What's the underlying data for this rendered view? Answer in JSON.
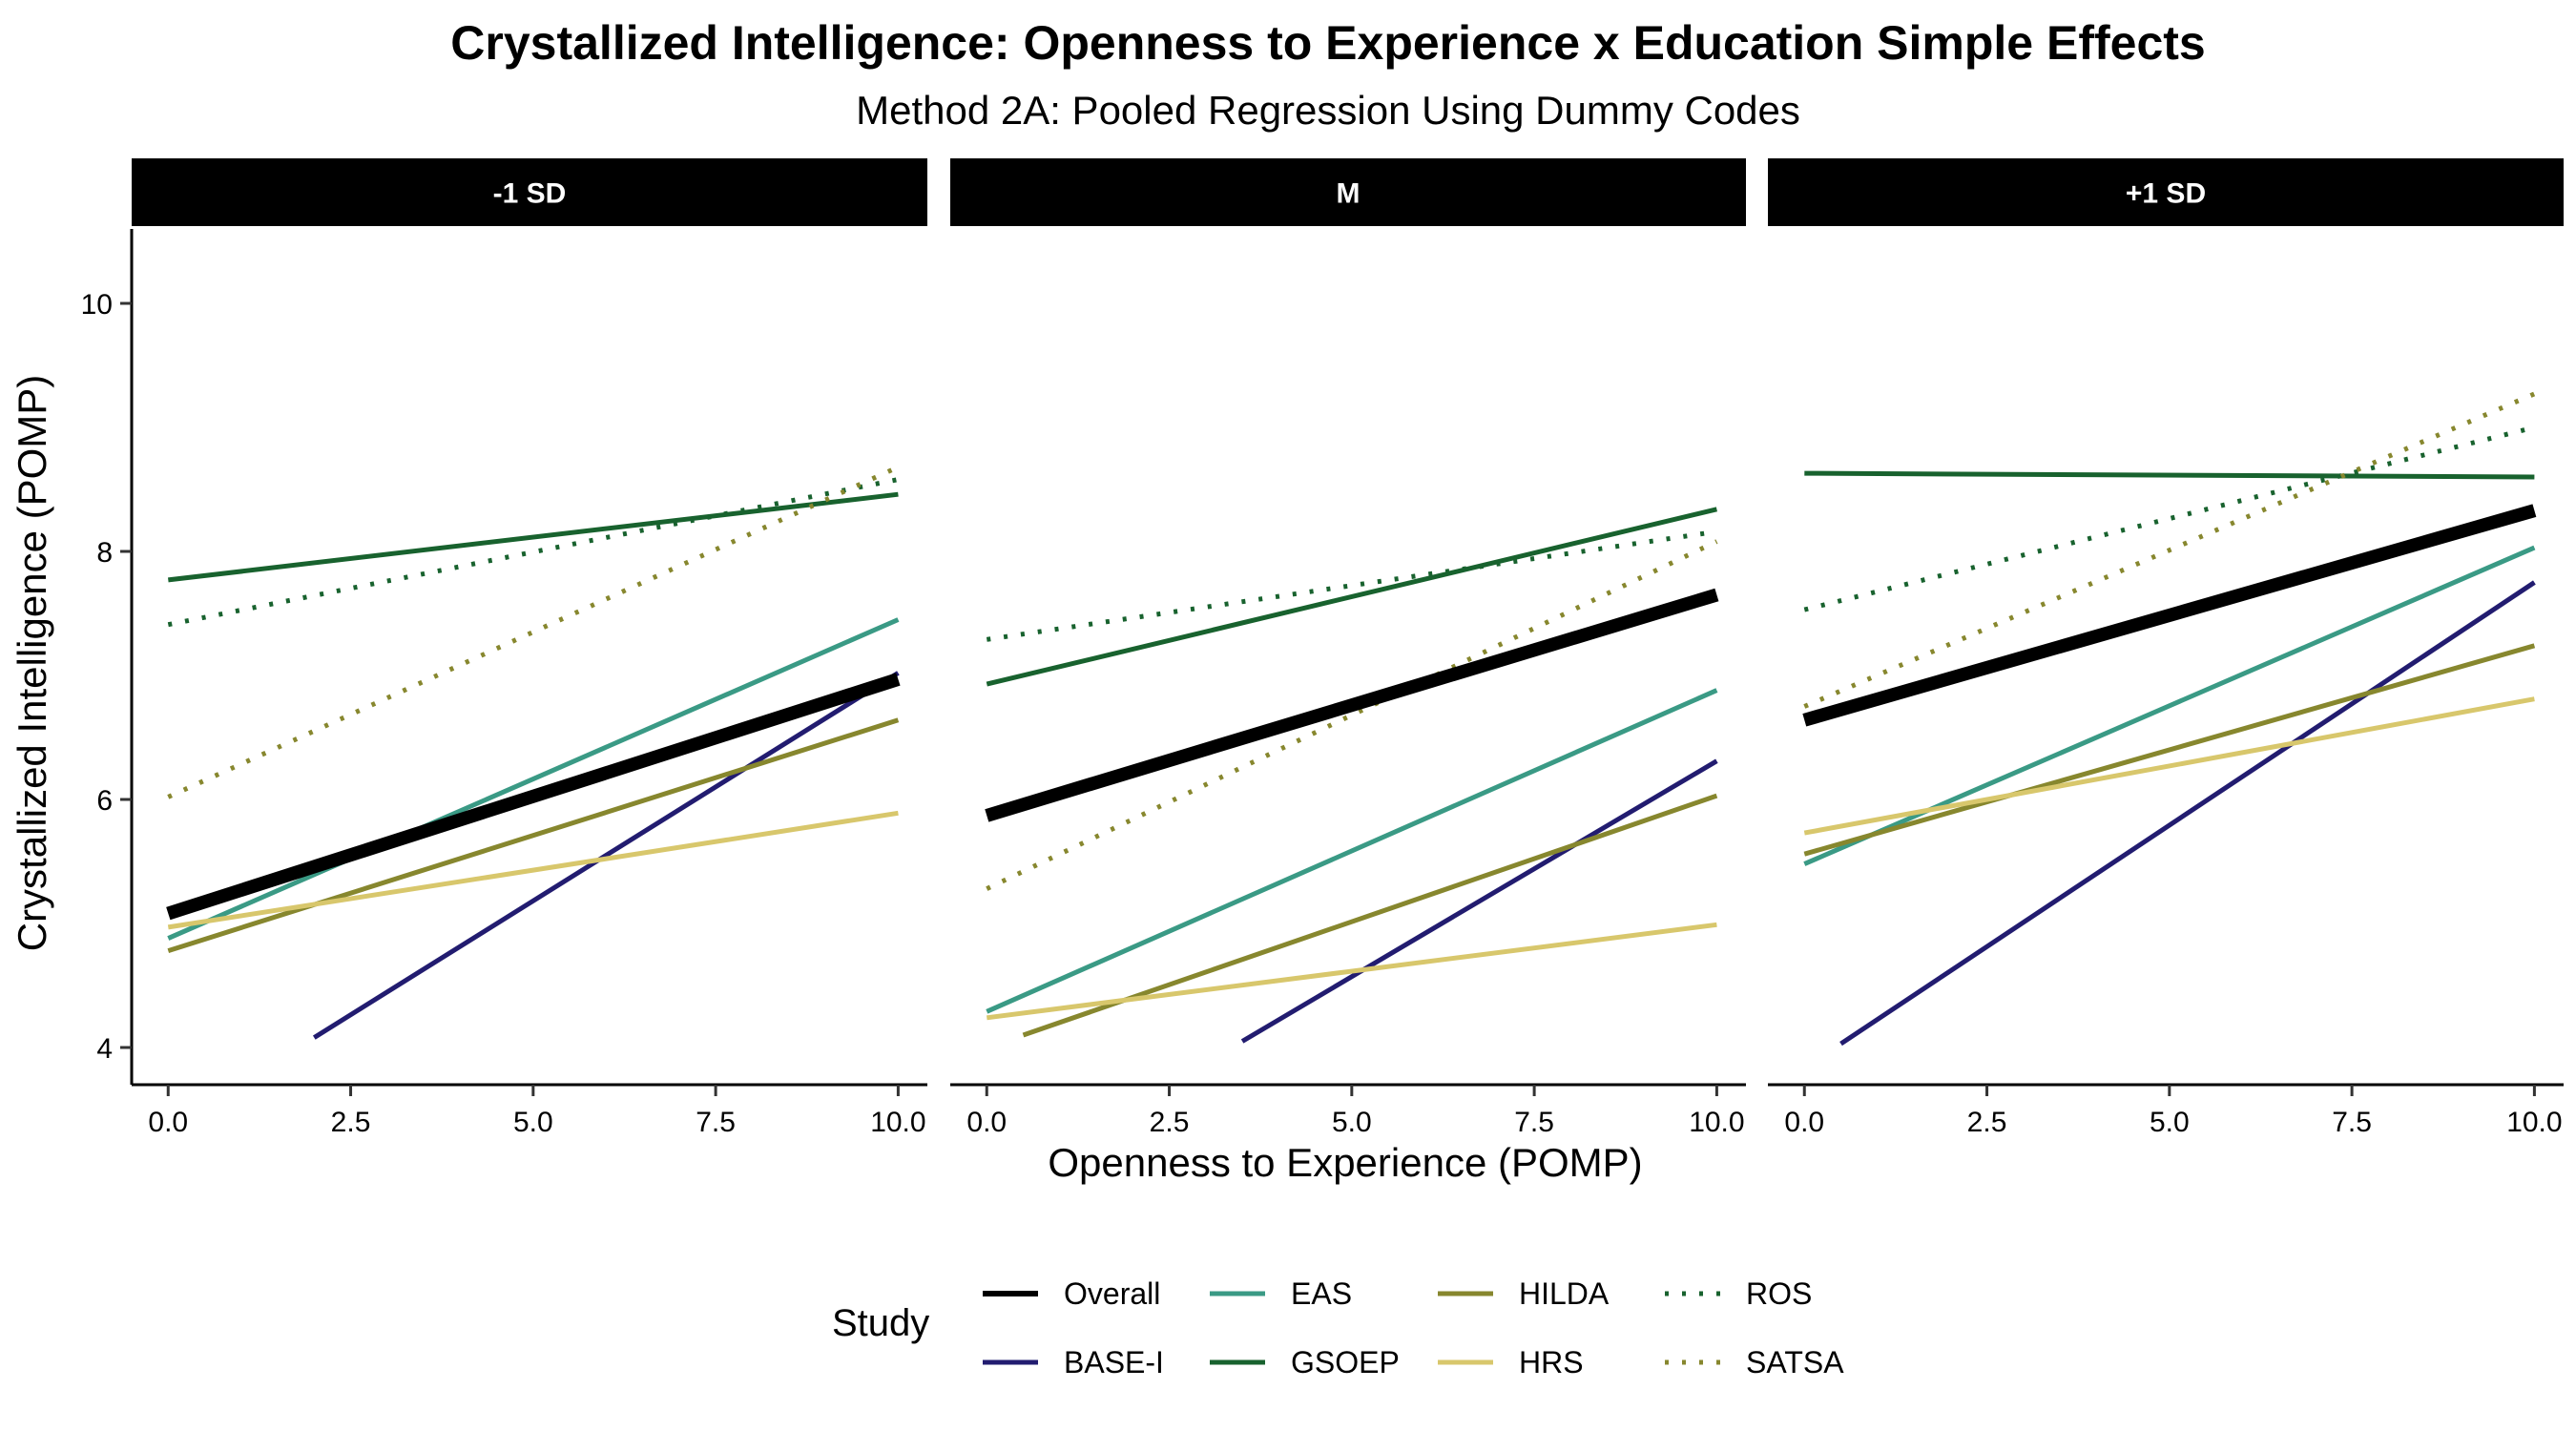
{
  "title": "Crystallized Intelligence: Openness to Experience x Education Simple Effects",
  "subtitle": "Method 2A: Pooled Regression Using Dummy Codes",
  "chart_data": {
    "type": "line",
    "xlabel": "Openness to Experience (POMP)",
    "ylabel": "Crystallized Intelligence (POMP)",
    "xlim": [
      -0.5,
      10.4
    ],
    "ylim": [
      3.7,
      10.6
    ],
    "x_ticks": [
      0,
      2.5,
      5,
      7.5,
      10
    ],
    "x_tick_labels": [
      "0.0",
      "2.5",
      "5.0",
      "7.5",
      "10.0"
    ],
    "y_ticks": [
      4,
      6,
      8,
      10
    ],
    "y_tick_labels": [
      "4",
      "6",
      "8",
      "10"
    ],
    "grid": false,
    "legend": {
      "title": "Study",
      "position": "bottom",
      "columns": [
        [
          "Overall",
          "BASE-I"
        ],
        [
          "EAS",
          "GSOEP"
        ],
        [
          "HILDA",
          "HRS"
        ],
        [
          "ROS",
          "SATSA"
        ]
      ]
    },
    "series_styles": {
      "Overall": {
        "color": "#000000",
        "width": 14,
        "dash": "solid"
      },
      "BASE-I": {
        "color": "#221C70",
        "width": 5,
        "dash": "solid"
      },
      "EAS": {
        "color": "#3A9A85",
        "width": 5,
        "dash": "solid"
      },
      "GSOEP": {
        "color": "#18622E",
        "width": 5,
        "dash": "solid"
      },
      "HILDA": {
        "color": "#87872E",
        "width": 5,
        "dash": "solid"
      },
      "HRS": {
        "color": "#D8C76C",
        "width": 5,
        "dash": "solid"
      },
      "ROS": {
        "color": "#18622E",
        "width": 5,
        "dash": "dotted"
      },
      "SATSA": {
        "color": "#87872E",
        "width": 5,
        "dash": "dotted"
      }
    },
    "panels": [
      {
        "label": "-1 SD",
        "series": [
          {
            "name": "Overall",
            "x": [
              0,
              10
            ],
            "y": [
              5.08,
              6.97
            ]
          },
          {
            "name": "BASE-I",
            "x": [
              2.0,
              10
            ],
            "y": [
              4.08,
              7.02
            ]
          },
          {
            "name": "EAS",
            "x": [
              0,
              10
            ],
            "y": [
              4.88,
              7.45
            ]
          },
          {
            "name": "GSOEP",
            "x": [
              0,
              10
            ],
            "y": [
              7.77,
              8.46
            ]
          },
          {
            "name": "HILDA",
            "x": [
              0,
              10
            ],
            "y": [
              4.78,
              6.64
            ]
          },
          {
            "name": "HRS",
            "x": [
              0,
              10
            ],
            "y": [
              4.97,
              5.89
            ]
          },
          {
            "name": "ROS",
            "x": [
              0,
              10
            ],
            "y": [
              7.41,
              8.58
            ]
          },
          {
            "name": "SATSA",
            "x": [
              0,
              10
            ],
            "y": [
              6.02,
              8.68
            ]
          }
        ]
      },
      {
        "label": "M",
        "series": [
          {
            "name": "Overall",
            "x": [
              0,
              10
            ],
            "y": [
              5.87,
              7.65
            ]
          },
          {
            "name": "BASE-I",
            "x": [
              3.5,
              10
            ],
            "y": [
              4.05,
              6.31
            ]
          },
          {
            "name": "EAS",
            "x": [
              0,
              10
            ],
            "y": [
              4.29,
              6.88
            ]
          },
          {
            "name": "GSOEP",
            "x": [
              0,
              10
            ],
            "y": [
              6.93,
              8.34
            ]
          },
          {
            "name": "HILDA",
            "x": [
              0.5,
              10
            ],
            "y": [
              4.1,
              6.03
            ]
          },
          {
            "name": "HRS",
            "x": [
              0,
              10
            ],
            "y": [
              4.24,
              4.99
            ]
          },
          {
            "name": "ROS",
            "x": [
              0,
              10
            ],
            "y": [
              7.29,
              8.16
            ]
          },
          {
            "name": "SATSA",
            "x": [
              0,
              10
            ],
            "y": [
              5.28,
              8.08
            ]
          }
        ]
      },
      {
        "label": "+1 SD",
        "series": [
          {
            "name": "Overall",
            "x": [
              0,
              10
            ],
            "y": [
              6.64,
              8.33
            ]
          },
          {
            "name": "BASE-I",
            "x": [
              0.5,
              10
            ],
            "y": [
              4.03,
              7.75
            ]
          },
          {
            "name": "EAS",
            "x": [
              0,
              10
            ],
            "y": [
              5.48,
              8.03
            ]
          },
          {
            "name": "GSOEP",
            "x": [
              0,
              10
            ],
            "y": [
              8.63,
              8.6
            ]
          },
          {
            "name": "HILDA",
            "x": [
              0,
              10
            ],
            "y": [
              5.56,
              7.24
            ]
          },
          {
            "name": "HRS",
            "x": [
              0,
              10
            ],
            "y": [
              5.73,
              6.81
            ]
          },
          {
            "name": "ROS",
            "x": [
              0,
              10
            ],
            "y": [
              7.53,
              9.0
            ]
          },
          {
            "name": "SATSA",
            "x": [
              0,
              10
            ],
            "y": [
              6.75,
              9.27
            ]
          }
        ]
      }
    ]
  }
}
